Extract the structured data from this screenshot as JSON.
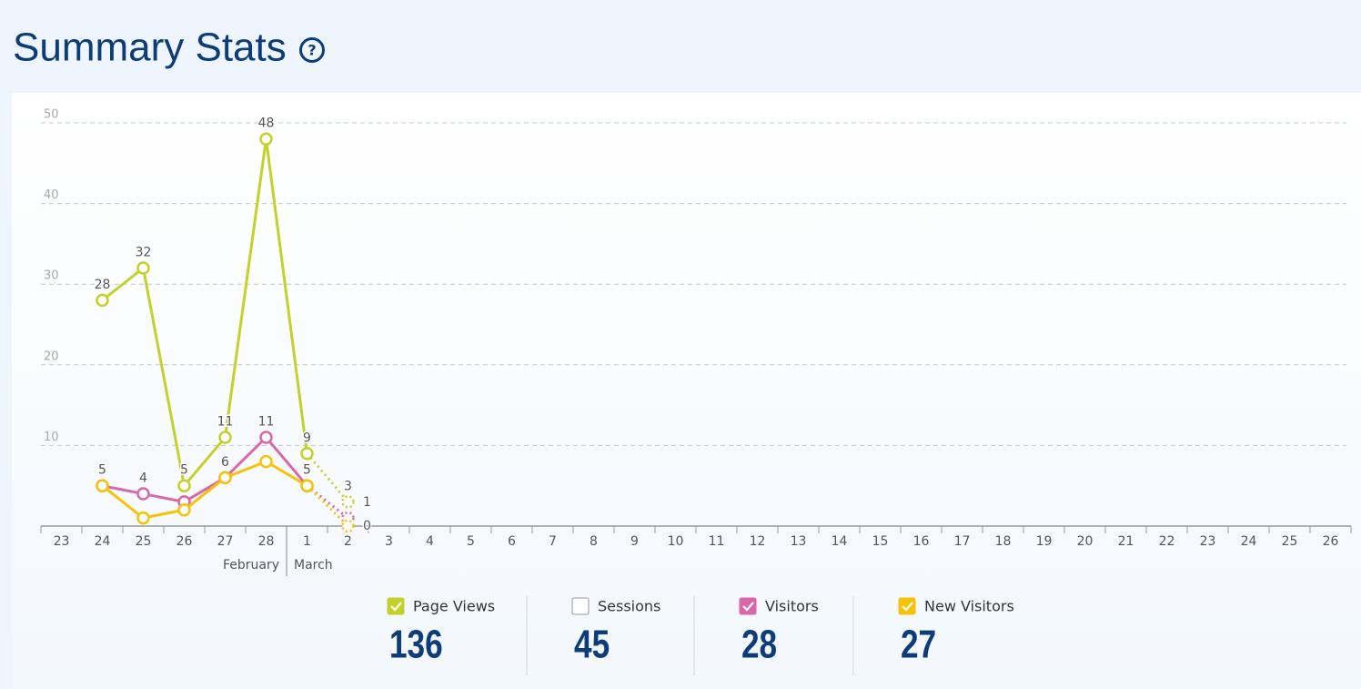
{
  "header": {
    "title": "Summary Stats",
    "help": "?"
  },
  "chart_data": {
    "type": "line",
    "categories": [
      "23",
      "24",
      "25",
      "26",
      "27",
      "28",
      "1",
      "2",
      "3",
      "4",
      "5",
      "6",
      "7",
      "8",
      "9",
      "10",
      "11",
      "12",
      "13",
      "14",
      "15",
      "16",
      "17",
      "18",
      "19",
      "20",
      "21",
      "22",
      "23",
      "24",
      "25",
      "26"
    ],
    "month_groups": [
      {
        "name": "February",
        "count": 6
      },
      {
        "name": "March",
        "count": 26
      }
    ],
    "ylim": [
      0,
      50
    ],
    "yticks": [
      10,
      20,
      30,
      40,
      50
    ],
    "grid": true,
    "last_segment_dashed": true,
    "series": [
      {
        "name": "Page Views",
        "color": "#c3d22b",
        "checked": true,
        "total": 136,
        "values": [
          null,
          28,
          32,
          5,
          11,
          48,
          9,
          3,
          null,
          null,
          null,
          null,
          null,
          null,
          null,
          null,
          null,
          null,
          null,
          null,
          null,
          null,
          null,
          null,
          null,
          null,
          null,
          null,
          null,
          null,
          null,
          null
        ],
        "value_labels": [
          null,
          "28",
          "32",
          "5",
          "11",
          "48",
          "9",
          "3",
          null,
          null,
          null,
          null,
          null,
          null,
          null,
          null,
          null,
          null,
          null,
          null,
          null,
          null,
          null,
          null,
          null,
          null,
          null,
          null,
          null,
          null,
          null,
          null
        ]
      },
      {
        "name": "Sessions",
        "color": "#ffffff",
        "checked": false,
        "total": 45
      },
      {
        "name": "Visitors",
        "color": "#d868aa",
        "checked": true,
        "total": 28,
        "values": [
          null,
          5,
          4,
          3,
          6,
          11,
          5,
          1,
          null,
          null,
          null,
          null,
          null,
          null,
          null,
          null,
          null,
          null,
          null,
          null,
          null,
          null,
          null,
          null,
          null,
          null,
          null,
          null,
          null,
          null,
          null,
          null
        ],
        "value_labels": [
          null,
          "5",
          "4",
          null,
          "6",
          "11",
          "5",
          "1",
          null,
          null,
          null,
          null,
          null,
          null,
          null,
          null,
          null,
          null,
          null,
          null,
          null,
          null,
          null,
          null,
          null,
          null,
          null,
          null,
          null,
          null,
          null,
          null
        ]
      },
      {
        "name": "New Visitors",
        "color": "#f7c20a",
        "checked": true,
        "total": 27,
        "values": [
          null,
          5,
          1,
          2,
          6,
          8,
          5,
          0,
          null,
          null,
          null,
          null,
          null,
          null,
          null,
          null,
          null,
          null,
          null,
          null,
          null,
          null,
          null,
          null,
          null,
          null,
          null,
          null,
          null,
          null,
          null,
          null
        ],
        "value_labels": [
          null,
          null,
          null,
          null,
          null,
          null,
          null,
          "0",
          null,
          null,
          null,
          null,
          null,
          null,
          null,
          null,
          null,
          null,
          null,
          null,
          null,
          null,
          null,
          null,
          null,
          null,
          null,
          null,
          null,
          null,
          null,
          null
        ]
      }
    ]
  }
}
